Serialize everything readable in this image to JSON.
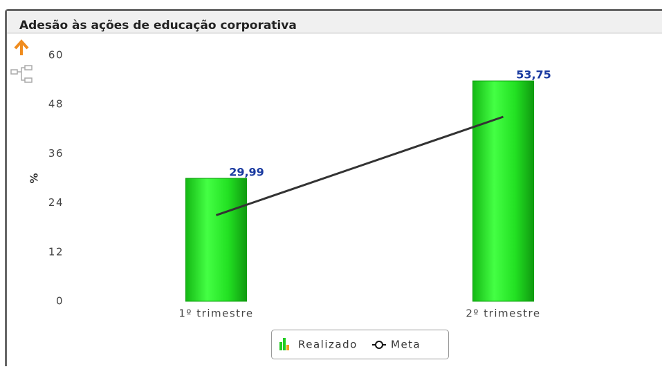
{
  "chart_data": {
    "type": "bar",
    "title": "Adesão às ações de educação corporativa",
    "y_label": "%",
    "categories": [
      "1º trimestre",
      "2º trimestre"
    ],
    "series": [
      {
        "name": "Realizado",
        "type": "bar",
        "color": "#22e022",
        "values": [
          29.99,
          53.75
        ],
        "value_labels": [
          "29,99",
          "53,75"
        ]
      },
      {
        "name": "Meta",
        "type": "line",
        "color": "#333333",
        "values": [
          21,
          45
        ]
      }
    ],
    "ylim": [
      0,
      60
    ],
    "yticks": [
      0,
      12,
      24,
      36,
      48,
      60
    ],
    "grid": false,
    "legend": "bottom"
  }
}
